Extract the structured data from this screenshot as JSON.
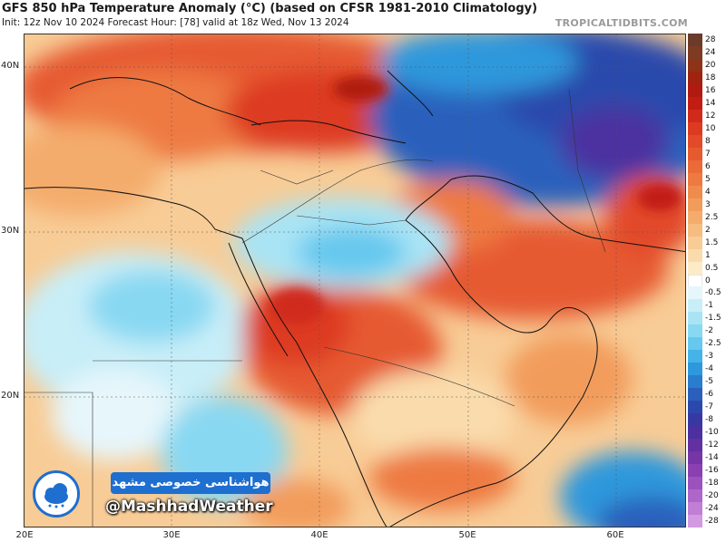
{
  "header": {
    "title": "GFS 850 hPa Temperature Anomaly (°C) (based on CFSR 1981-2010 Climatology)",
    "subtitle": "Init: 12z Nov 10 2024   Forecast Hour: [78]   valid at 18z Wed, Nov 13 2024",
    "brand": "TROPICALTIDBITS.COM"
  },
  "axes": {
    "lat_labels": [
      "40N",
      "30N",
      "20N"
    ],
    "lon_labels": [
      "20E",
      "30E",
      "40E",
      "50E",
      "60E"
    ]
  },
  "colorbar": {
    "labels": [
      "28",
      "24",
      "20",
      "18",
      "16",
      "14",
      "12",
      "10",
      "8",
      "7",
      "6",
      "5",
      "4",
      "3",
      "2.5",
      "2",
      "1.5",
      "1",
      "0.5",
      "0",
      "-0.5",
      "-1",
      "-1.5",
      "-2",
      "-2.5",
      "-3",
      "-4",
      "-5",
      "-6",
      "-7",
      "-8",
      "-10",
      "-12",
      "-14",
      "-16",
      "-18",
      "-20",
      "-24",
      "-28"
    ],
    "colors": [
      "#6b3b2a",
      "#7d3b22",
      "#8e3318",
      "#a0230f",
      "#b01a10",
      "#c21d14",
      "#d02a1a",
      "#dd3a22",
      "#e24a2a",
      "#e65a30",
      "#ea6a38",
      "#ee7a42",
      "#f08b4e",
      "#f29c5c",
      "#f4ac6c",
      "#f6bc80",
      "#f8cc96",
      "#fadcac",
      "#fcebc6",
      "#ffffff",
      "#e6f6fb",
      "#c8eef8",
      "#a9e4f5",
      "#88d8f2",
      "#66c8ee",
      "#45b2e8",
      "#2e98dc",
      "#2a7ccc",
      "#2a60bc",
      "#2c48ac",
      "#3838a4",
      "#4c30a0",
      "#6230a0",
      "#7636a6",
      "#8a40b0",
      "#9c52bc",
      "#ae66c8",
      "#c07ed4",
      "#d29ae0"
    ]
  },
  "watermark": {
    "farsi": "هواشناسی خصوصی مشهد",
    "handle": "@MashhadWeather"
  }
}
